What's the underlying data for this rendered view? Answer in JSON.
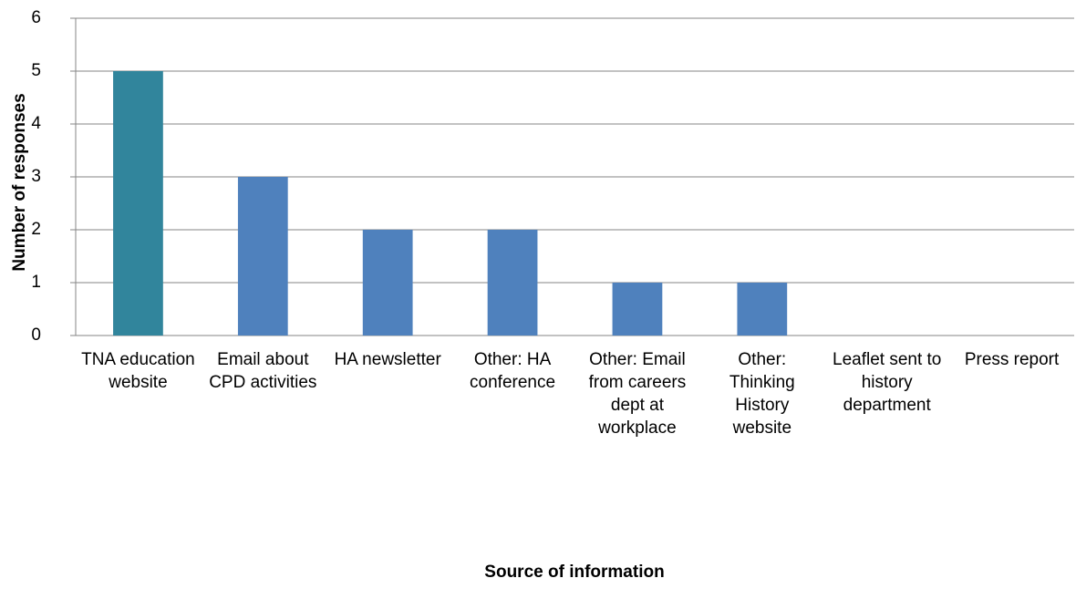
{
  "chart_data": {
    "type": "bar",
    "y_label": "Number of responses",
    "x_label": "Source of information",
    "categories": [
      "TNA education website",
      "Email about CPD activities",
      "HA newsletter",
      "Other: HA conference",
      "Other: Email from careers dept at workplace",
      "Other: Thinking History website",
      "Leaflet sent to history department",
      "Press report"
    ],
    "values": [
      5,
      3,
      2,
      2,
      1,
      1,
      0,
      0
    ],
    "colors": [
      "#31859c",
      "#4f81bd",
      "#4f81bd",
      "#4f81bd",
      "#4f81bd",
      "#4f81bd",
      "#4f81bd",
      "#4f81bd"
    ],
    "ylim": [
      0,
      6
    ],
    "yticks": [
      0,
      1,
      2,
      3,
      4,
      5,
      6
    ],
    "grid": true
  }
}
